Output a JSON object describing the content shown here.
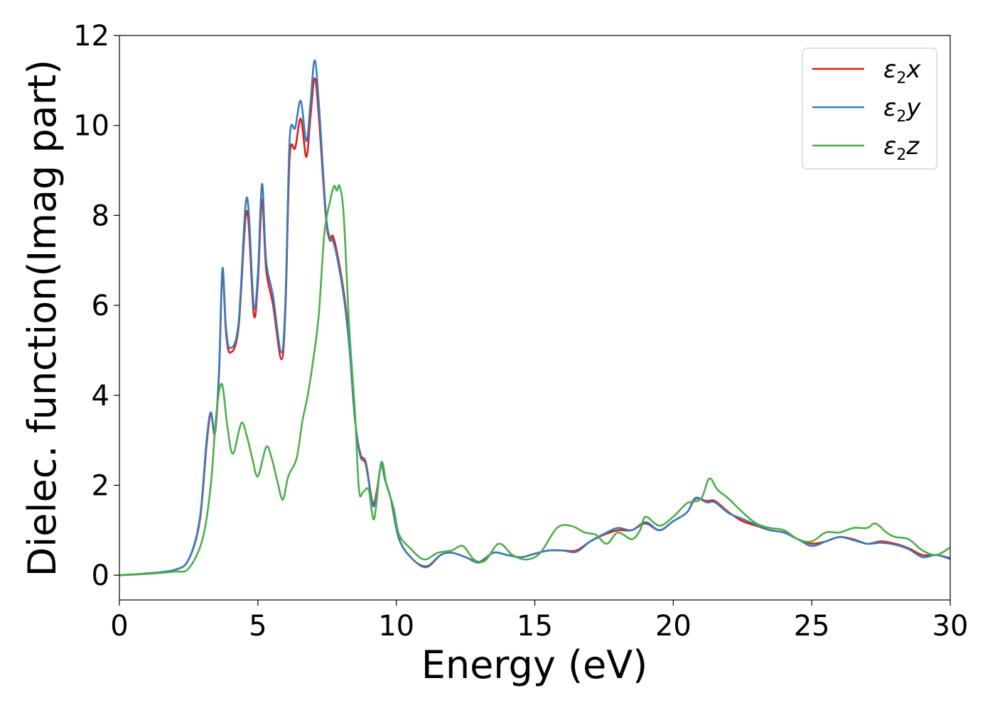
{
  "chart_data": {
    "type": "line",
    "xlabel": "Energy (eV)",
    "ylabel": "Dielec. function(Imag part)",
    "xlim": [
      0,
      30
    ],
    "ylim": [
      -0.55,
      12
    ],
    "xticks": [
      0,
      5,
      10,
      15,
      20,
      25,
      30
    ],
    "yticks": [
      0,
      2,
      4,
      6,
      8,
      10,
      12
    ],
    "grid": false,
    "legend_position": "top-right",
    "series": [
      {
        "name_base": "ε",
        "name_sub": "2",
        "name_var": "x",
        "color": "#e41a1c",
        "points": [
          [
            0,
            0
          ],
          [
            1,
            0.04
          ],
          [
            2,
            0.12
          ],
          [
            2.5,
            0.35
          ],
          [
            2.9,
            1.2
          ],
          [
            3.15,
            2.9
          ],
          [
            3.3,
            3.6
          ],
          [
            3.45,
            3.15
          ],
          [
            3.6,
            4.5
          ],
          [
            3.72,
            6.7
          ],
          [
            3.85,
            5.4
          ],
          [
            4.0,
            4.95
          ],
          [
            4.3,
            5.5
          ],
          [
            4.6,
            8.1
          ],
          [
            4.85,
            5.8
          ],
          [
            5.0,
            6.5
          ],
          [
            5.15,
            8.35
          ],
          [
            5.3,
            6.8
          ],
          [
            5.55,
            6.0
          ],
          [
            5.85,
            4.8
          ],
          [
            6.0,
            6.0
          ],
          [
            6.15,
            9.3
          ],
          [
            6.35,
            9.5
          ],
          [
            6.55,
            10.15
          ],
          [
            6.75,
            9.3
          ],
          [
            6.9,
            10.2
          ],
          [
            7.05,
            11.05
          ],
          [
            7.2,
            10.2
          ],
          [
            7.45,
            8.0
          ],
          [
            7.6,
            7.45
          ],
          [
            7.7,
            7.55
          ],
          [
            7.85,
            7.2
          ],
          [
            8.1,
            6.3
          ],
          [
            8.3,
            5.2
          ],
          [
            8.5,
            3.5
          ],
          [
            8.7,
            2.7
          ],
          [
            8.9,
            2.5
          ],
          [
            9.15,
            1.6
          ],
          [
            9.3,
            1.9
          ],
          [
            9.45,
            2.45
          ],
          [
            9.6,
            2.1
          ],
          [
            9.8,
            1.7
          ],
          [
            10.1,
            0.8
          ],
          [
            10.6,
            0.35
          ],
          [
            11.1,
            0.2
          ],
          [
            11.6,
            0.45
          ],
          [
            12.0,
            0.5
          ],
          [
            12.5,
            0.4
          ],
          [
            13.0,
            0.3
          ],
          [
            13.5,
            0.5
          ],
          [
            14.0,
            0.45
          ],
          [
            14.5,
            0.4
          ],
          [
            15.0,
            0.48
          ],
          [
            15.5,
            0.55
          ],
          [
            16.0,
            0.55
          ],
          [
            16.5,
            0.55
          ],
          [
            17.0,
            0.75
          ],
          [
            17.5,
            0.9
          ],
          [
            18.0,
            1.0
          ],
          [
            18.5,
            1.0
          ],
          [
            19.0,
            1.15
          ],
          [
            19.5,
            1.0
          ],
          [
            20.0,
            1.2
          ],
          [
            20.5,
            1.4
          ],
          [
            20.8,
            1.7
          ],
          [
            21.2,
            1.65
          ],
          [
            21.5,
            1.65
          ],
          [
            22.0,
            1.4
          ],
          [
            22.5,
            1.2
          ],
          [
            23.0,
            1.1
          ],
          [
            23.5,
            1.0
          ],
          [
            24.0,
            0.95
          ],
          [
            24.5,
            0.8
          ],
          [
            25.0,
            0.7
          ],
          [
            25.5,
            0.75
          ],
          [
            26.0,
            0.85
          ],
          [
            26.5,
            0.8
          ],
          [
            27.0,
            0.7
          ],
          [
            27.5,
            0.75
          ],
          [
            28.0,
            0.7
          ],
          [
            28.5,
            0.6
          ],
          [
            29.0,
            0.45
          ],
          [
            29.5,
            0.45
          ],
          [
            30.0,
            0.38
          ]
        ]
      },
      {
        "name_base": "ε",
        "name_sub": "2",
        "name_var": "y",
        "color": "#377eb8",
        "points": [
          [
            0,
            0
          ],
          [
            1,
            0.04
          ],
          [
            2,
            0.12
          ],
          [
            2.5,
            0.35
          ],
          [
            2.9,
            1.25
          ],
          [
            3.15,
            3.0
          ],
          [
            3.3,
            3.62
          ],
          [
            3.45,
            3.2
          ],
          [
            3.6,
            4.6
          ],
          [
            3.72,
            6.82
          ],
          [
            3.85,
            5.5
          ],
          [
            4.0,
            5.05
          ],
          [
            4.3,
            5.6
          ],
          [
            4.6,
            8.4
          ],
          [
            4.85,
            6.0
          ],
          [
            5.0,
            6.7
          ],
          [
            5.15,
            8.7
          ],
          [
            5.3,
            7.0
          ],
          [
            5.55,
            6.2
          ],
          [
            5.85,
            4.95
          ],
          [
            6.0,
            6.2
          ],
          [
            6.15,
            9.7
          ],
          [
            6.35,
            9.95
          ],
          [
            6.55,
            10.55
          ],
          [
            6.75,
            9.65
          ],
          [
            6.9,
            10.5
          ],
          [
            7.05,
            11.45
          ],
          [
            7.2,
            10.5
          ],
          [
            7.45,
            8.1
          ],
          [
            7.6,
            7.5
          ],
          [
            7.7,
            7.45
          ],
          [
            7.85,
            7.1
          ],
          [
            8.1,
            6.2
          ],
          [
            8.3,
            5.1
          ],
          [
            8.5,
            3.5
          ],
          [
            8.7,
            2.65
          ],
          [
            8.9,
            2.45
          ],
          [
            9.15,
            1.55
          ],
          [
            9.3,
            1.85
          ],
          [
            9.45,
            2.45
          ],
          [
            9.6,
            2.1
          ],
          [
            9.8,
            1.7
          ],
          [
            10.1,
            0.8
          ],
          [
            10.6,
            0.35
          ],
          [
            11.1,
            0.18
          ],
          [
            11.6,
            0.45
          ],
          [
            12.0,
            0.5
          ],
          [
            12.5,
            0.4
          ],
          [
            13.0,
            0.28
          ],
          [
            13.5,
            0.5
          ],
          [
            14.0,
            0.45
          ],
          [
            14.5,
            0.4
          ],
          [
            15.0,
            0.48
          ],
          [
            15.5,
            0.55
          ],
          [
            16.0,
            0.55
          ],
          [
            16.5,
            0.52
          ],
          [
            17.0,
            0.75
          ],
          [
            17.5,
            0.92
          ],
          [
            18.0,
            1.05
          ],
          [
            18.5,
            1.0
          ],
          [
            19.0,
            1.18
          ],
          [
            19.5,
            1.0
          ],
          [
            20.0,
            1.2
          ],
          [
            20.5,
            1.4
          ],
          [
            20.8,
            1.72
          ],
          [
            21.2,
            1.62
          ],
          [
            21.5,
            1.62
          ],
          [
            22.0,
            1.38
          ],
          [
            22.5,
            1.25
          ],
          [
            23.0,
            1.12
          ],
          [
            23.5,
            1.0
          ],
          [
            24.0,
            0.95
          ],
          [
            24.5,
            0.8
          ],
          [
            25.0,
            0.65
          ],
          [
            25.5,
            0.75
          ],
          [
            26.0,
            0.85
          ],
          [
            26.5,
            0.78
          ],
          [
            27.0,
            0.7
          ],
          [
            27.5,
            0.72
          ],
          [
            28.0,
            0.68
          ],
          [
            28.5,
            0.58
          ],
          [
            29.0,
            0.4
          ],
          [
            29.5,
            0.45
          ],
          [
            30.0,
            0.36
          ]
        ]
      },
      {
        "name_base": "ε",
        "name_sub": "2",
        "name_var": "z",
        "color": "#4daf4a",
        "points": [
          [
            0,
            0
          ],
          [
            1,
            0.03
          ],
          [
            2,
            0.08
          ],
          [
            2.5,
            0.15
          ],
          [
            3.0,
            0.8
          ],
          [
            3.3,
            2.0
          ],
          [
            3.5,
            3.6
          ],
          [
            3.7,
            4.25
          ],
          [
            3.9,
            3.3
          ],
          [
            4.1,
            2.7
          ],
          [
            4.4,
            3.38
          ],
          [
            4.6,
            3.1
          ],
          [
            4.8,
            2.6
          ],
          [
            5.0,
            2.2
          ],
          [
            5.3,
            2.85
          ],
          [
            5.5,
            2.6
          ],
          [
            5.7,
            2.1
          ],
          [
            5.9,
            1.68
          ],
          [
            6.1,
            2.2
          ],
          [
            6.4,
            2.6
          ],
          [
            6.6,
            3.4
          ],
          [
            6.8,
            4.0
          ],
          [
            7.0,
            4.8
          ],
          [
            7.2,
            5.8
          ],
          [
            7.4,
            7.6
          ],
          [
            7.6,
            8.3
          ],
          [
            7.75,
            8.65
          ],
          [
            7.85,
            8.55
          ],
          [
            7.95,
            8.65
          ],
          [
            8.1,
            8.0
          ],
          [
            8.3,
            5.5
          ],
          [
            8.5,
            3.7
          ],
          [
            8.65,
            1.9
          ],
          [
            8.8,
            1.85
          ],
          [
            9.0,
            1.9
          ],
          [
            9.2,
            1.25
          ],
          [
            9.45,
            2.5
          ],
          [
            9.65,
            2.0
          ],
          [
            9.9,
            1.5
          ],
          [
            10.1,
            0.9
          ],
          [
            10.5,
            0.6
          ],
          [
            11.0,
            0.35
          ],
          [
            11.5,
            0.5
          ],
          [
            12.0,
            0.55
          ],
          [
            12.4,
            0.65
          ],
          [
            12.8,
            0.35
          ],
          [
            13.2,
            0.32
          ],
          [
            13.7,
            0.7
          ],
          [
            14.2,
            0.45
          ],
          [
            14.7,
            0.35
          ],
          [
            15.2,
            0.5
          ],
          [
            15.8,
            1.05
          ],
          [
            16.3,
            1.1
          ],
          [
            16.8,
            0.95
          ],
          [
            17.2,
            0.9
          ],
          [
            17.6,
            0.7
          ],
          [
            18.0,
            0.95
          ],
          [
            18.5,
            0.8
          ],
          [
            18.8,
            1.0
          ],
          [
            19.0,
            1.3
          ],
          [
            19.5,
            1.1
          ],
          [
            20.0,
            1.3
          ],
          [
            20.5,
            1.6
          ],
          [
            21.0,
            1.7
          ],
          [
            21.3,
            2.15
          ],
          [
            21.6,
            1.9
          ],
          [
            22.0,
            1.7
          ],
          [
            22.5,
            1.4
          ],
          [
            23.0,
            1.15
          ],
          [
            23.5,
            1.05
          ],
          [
            24.0,
            1.0
          ],
          [
            24.5,
            0.8
          ],
          [
            25.0,
            0.75
          ],
          [
            25.5,
            0.95
          ],
          [
            26.0,
            0.95
          ],
          [
            26.5,
            1.05
          ],
          [
            27.0,
            1.05
          ],
          [
            27.3,
            1.15
          ],
          [
            27.7,
            0.95
          ],
          [
            28.0,
            0.85
          ],
          [
            28.5,
            0.8
          ],
          [
            29.0,
            0.55
          ],
          [
            29.5,
            0.45
          ],
          [
            30.0,
            0.62
          ]
        ]
      }
    ]
  }
}
